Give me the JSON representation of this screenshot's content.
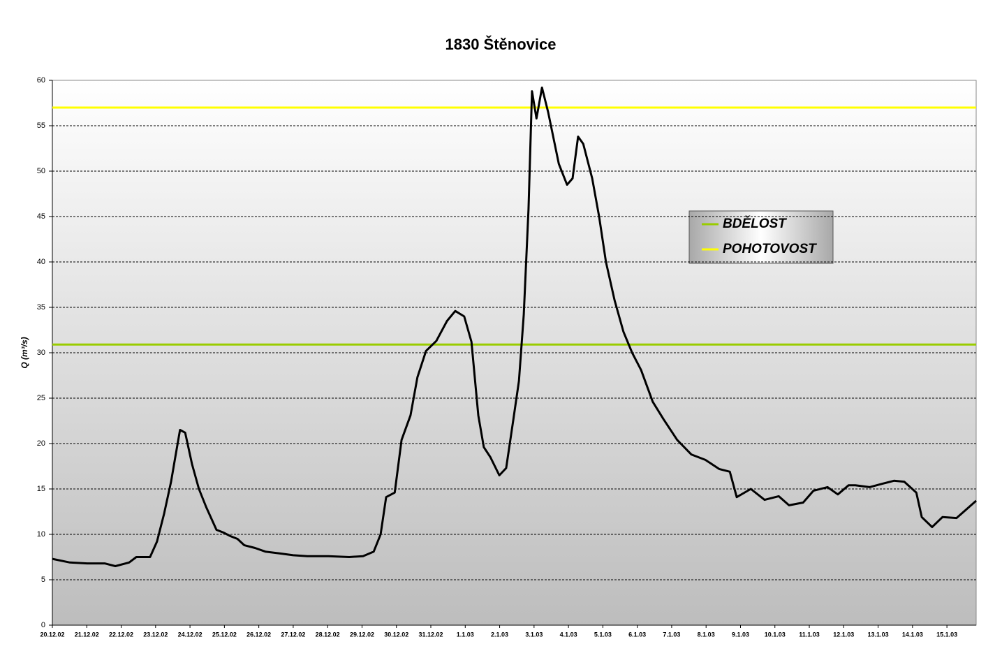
{
  "chart_data": {
    "type": "line",
    "title": "1830 Štěnovice",
    "y_label": "Q (m³/s)",
    "x": [
      0,
      0.51,
      1.01,
      1.52,
      1.83,
      2.23,
      2.44,
      2.84,
      3.04,
      3.25,
      3.45,
      3.55,
      3.71,
      3.86,
      4.06,
      4.26,
      4.47,
      4.77,
      4.97,
      5.18,
      5.38,
      5.58,
      5.89,
      6.19,
      6.6,
      7,
      7.41,
      8.02,
      8.63,
      9.03,
      9.34,
      9.54,
      9.7,
      9.95,
      10.15,
      10.41,
      10.61,
      10.86,
      11.16,
      11.47,
      11.71,
      11.97,
      12.18,
      12.38,
      12.54,
      12.73,
      12.99,
      13.19,
      13.4,
      13.56,
      13.7,
      13.84,
      13.94,
      14.07,
      14.23,
      14.41,
      14.72,
      14.96,
      15.12,
      15.28,
      15.43,
      15.69,
      15.89,
      16.09,
      16.34,
      16.6,
      16.85,
      17.11,
      17.45,
      17.76,
      18.16,
      18.57,
      18.98,
      19.38,
      19.69,
      19.89,
      20.3,
      20.7,
      21.11,
      21.41,
      21.82,
      22.12,
      22.53,
      22.83,
      23.14,
      23.34,
      23.75,
      24.15,
      24.46,
      24.76,
      25.11,
      25.27,
      25.57,
      25.87,
      26.28,
      26.58,
      26.85
    ],
    "values": [
      7.3,
      6.9,
      6.8,
      6.8,
      6.5,
      6.9,
      7.5,
      7.5,
      9.2,
      12.3,
      15.8,
      18,
      21.5,
      21.2,
      17.7,
      15,
      13,
      10.5,
      10.2,
      9.8,
      9.5,
      8.8,
      8.5,
      8.1,
      7.9,
      7.7,
      7.6,
      7.6,
      7.5,
      7.6,
      8.1,
      10,
      14.1,
      14.6,
      20.4,
      23.1,
      27.3,
      30.2,
      31.3,
      33.5,
      34.6,
      34,
      31.2,
      23.1,
      19.6,
      18.5,
      16.5,
      17.3,
      22.7,
      26.9,
      34.2,
      45.8,
      58.8,
      55.8,
      59.2,
      56.5,
      50.8,
      48.5,
      49.2,
      53.8,
      53,
      49.2,
      45,
      40,
      35.8,
      32.3,
      30,
      28.1,
      24.6,
      22.7,
      20.4,
      18.8,
      18.2,
      17.2,
      16.9,
      14.1,
      15,
      13.8,
      14.2,
      13.2,
      13.5,
      14.8,
      15.2,
      14.4,
      15.4,
      15.4,
      15.2,
      15.6,
      15.9,
      15.8,
      14.6,
      11.9,
      10.8,
      11.9,
      11.8,
      12.8,
      13.7
    ],
    "color": "#000000",
    "thresholds": [
      {
        "name": "BDĚLOST",
        "color": "#99cc00",
        "value": 30.9
      },
      {
        "name": "POHOTOVOST",
        "color": "#ffff00",
        "value": 57
      }
    ],
    "xlim": [
      0,
      26.85
    ],
    "xticks": [
      {
        "value": 0,
        "label": "20.12.02"
      },
      {
        "value": 1,
        "label": "21.12.02"
      },
      {
        "value": 2,
        "label": "22.12.02"
      },
      {
        "value": 3,
        "label": "23.12.02"
      },
      {
        "value": 4,
        "label": "24.12.02"
      },
      {
        "value": 5,
        "label": "25.12.02"
      },
      {
        "value": 6,
        "label": "26.12.02"
      },
      {
        "value": 7,
        "label": "27.12.02"
      },
      {
        "value": 8,
        "label": "28.12.02"
      },
      {
        "value": 9,
        "label": "29.12.02"
      },
      {
        "value": 10,
        "label": "30.12.02"
      },
      {
        "value": 11,
        "label": "31.12.02"
      },
      {
        "value": 12,
        "label": "1.1.03"
      },
      {
        "value": 13,
        "label": "2.1.03"
      },
      {
        "value": 14,
        "label": "3.1.03"
      },
      {
        "value": 15,
        "label": "4.1.03"
      },
      {
        "value": 16,
        "label": "5.1.03"
      },
      {
        "value": 17,
        "label": "6.1.03"
      },
      {
        "value": 18,
        "label": "7.1.03"
      },
      {
        "value": 19,
        "label": "8.1.03"
      },
      {
        "value": 20,
        "label": "9.1.03"
      },
      {
        "value": 21,
        "label": "10.1.03"
      },
      {
        "value": 22,
        "label": "11.1.03"
      },
      {
        "value": 23,
        "label": "12.1.03"
      },
      {
        "value": 24,
        "label": "13.1.03"
      },
      {
        "value": 25,
        "label": "14.1.03"
      },
      {
        "value": 26,
        "label": "15.1.03"
      }
    ],
    "ylim": [
      0,
      60
    ],
    "yticks": [
      0,
      5,
      10,
      15,
      20,
      25,
      30,
      35,
      40,
      45,
      50,
      55,
      60
    ],
    "grid": true
  }
}
